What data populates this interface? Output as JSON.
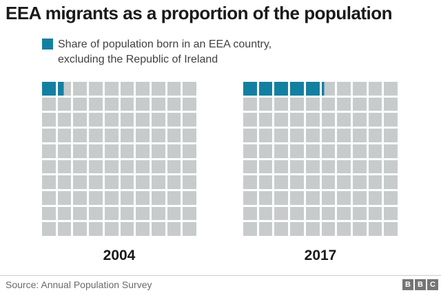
{
  "title": "EEA migrants as a proportion of the population",
  "legend": {
    "label_line1": "Share of population born in an EEA country,",
    "label_line2": "excluding the Republic of Ireland"
  },
  "chart_data": {
    "type": "waffle",
    "title": "EEA migrants as a proportion of the population",
    "legend_label": "Share of population born in an EEA country, excluding the Republic of Ireland",
    "grid": {
      "rows": 10,
      "columns": 10,
      "total_squares": 100,
      "square_represents_percent": 1
    },
    "series": [
      {
        "label": "2004",
        "value_percent": 1.5,
        "full_squares": 1,
        "partial_fraction": 0.45
      },
      {
        "label": "2017",
        "value_percent": 5.2,
        "full_squares": 5,
        "partial_fraction": 0.18
      }
    ]
  },
  "colors": {
    "filled": "#1380a1",
    "empty": "#c8cbcb",
    "title_text": "#1a1a1a",
    "legend_text": "#404040",
    "source_text": "#696969",
    "divider": "#cccccc",
    "bbc_block": "#757575"
  },
  "footer": {
    "source": "Source: Annual Population Survey",
    "logo_letters": [
      "B",
      "B",
      "C"
    ]
  }
}
